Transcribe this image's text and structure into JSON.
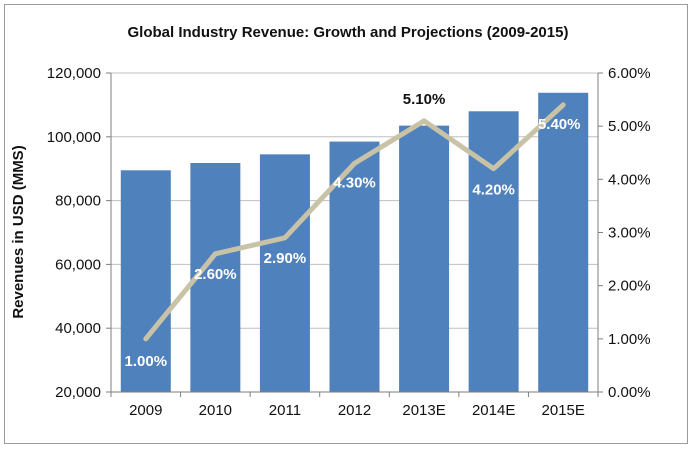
{
  "chart_data": {
    "type": "bar",
    "title": "Global Industry Revenue: Growth and Projections (2009-2015)",
    "xlabel": "",
    "ylabel": "Revenues in USD (MMS)",
    "y2label": "",
    "categories": [
      "2009",
      "2010",
      "2011",
      "2012",
      "2013E",
      "2014E",
      "2015E"
    ],
    "ylim": [
      20000,
      120000
    ],
    "y_ticks": [
      "20,000",
      "40,000",
      "60,000",
      "80,000",
      "100,000",
      "120,000"
    ],
    "y2lim": [
      0,
      6
    ],
    "y2_ticks": [
      "0.00%",
      "1.00%",
      "2.00%",
      "3.00%",
      "4.00%",
      "5.00%",
      "6.00%"
    ],
    "grid": true,
    "legend": "none",
    "series": [
      {
        "type": "bar",
        "axis": "left",
        "values": [
          89500,
          91800,
          94500,
          98500,
          103500,
          108000,
          113800
        ]
      },
      {
        "type": "line",
        "axis": "right",
        "values": [
          1.0,
          2.6,
          2.9,
          4.3,
          5.1,
          4.2,
          5.4
        ],
        "labels": [
          "1.00%",
          "2.60%",
          "2.90%",
          "4.30%",
          "5.10%",
          "4.20%",
          "5.40%"
        ]
      }
    ],
    "colors": {
      "bar": "#4f81bd",
      "line": "#c8c3a6",
      "grid": "#bfbfbf",
      "axis": "#7f7f7f"
    }
  }
}
